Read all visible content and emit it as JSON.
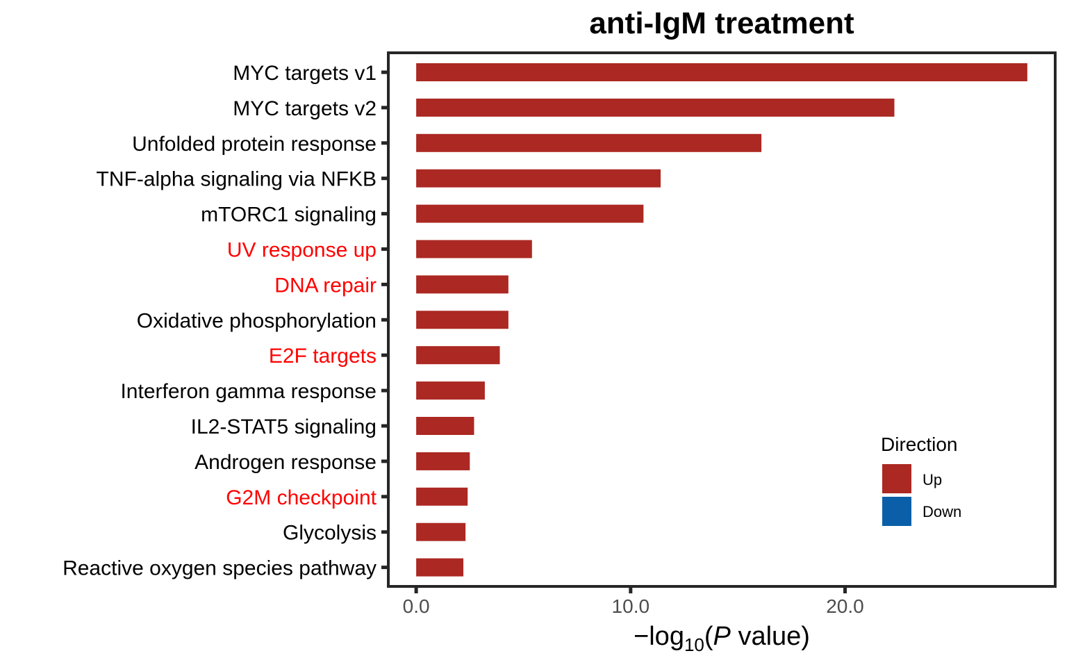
{
  "chart_data": {
    "type": "bar",
    "orientation": "horizontal",
    "title": "anti-IgM treatment",
    "xlabel": {
      "prefix": "−log",
      "subscript": "10",
      "open": "(",
      "italic": "P",
      "suffix": " value)"
    },
    "ylabel": "",
    "xlim": [
      -1.3,
      29.8
    ],
    "xticks": [
      0,
      10,
      20
    ],
    "xtick_labels": [
      "0.0",
      "10.0",
      "20.0"
    ],
    "categories": [
      "MYC targets v1",
      "MYC targets v2",
      "Unfolded protein response",
      "TNF-alpha signaling via NFKB",
      "mTORC1 signaling",
      "UV response up",
      "DNA repair",
      "Oxidative phosphorylation",
      "E2F targets",
      "Interferon gamma response",
      "IL2-STAT5 signaling",
      "Androgen response",
      "G2M checkpoint",
      "Glycolysis",
      "Reactive oxygen species pathway"
    ],
    "values": [
      28.5,
      22.3,
      16.1,
      11.4,
      10.6,
      5.4,
      4.3,
      4.3,
      3.9,
      3.2,
      2.7,
      2.5,
      2.4,
      2.3,
      2.2
    ],
    "directions": [
      "Up",
      "Up",
      "Up",
      "Up",
      "Up",
      "Up",
      "Up",
      "Up",
      "Up",
      "Up",
      "Up",
      "Up",
      "Up",
      "Up",
      "Up"
    ],
    "label_colors": [
      "#000000",
      "#000000",
      "#000000",
      "#000000",
      "#000000",
      "#ff0000",
      "#ff0000",
      "#000000",
      "#ff0000",
      "#000000",
      "#000000",
      "#000000",
      "#ff0000",
      "#000000",
      "#000000"
    ],
    "legend": {
      "title": "Direction",
      "position": "bottom-right",
      "entries": [
        {
          "label": "Up",
          "color": "#ac2822"
        },
        {
          "label": "Down",
          "color": "#0b5fa8"
        }
      ]
    },
    "grid": false
  }
}
